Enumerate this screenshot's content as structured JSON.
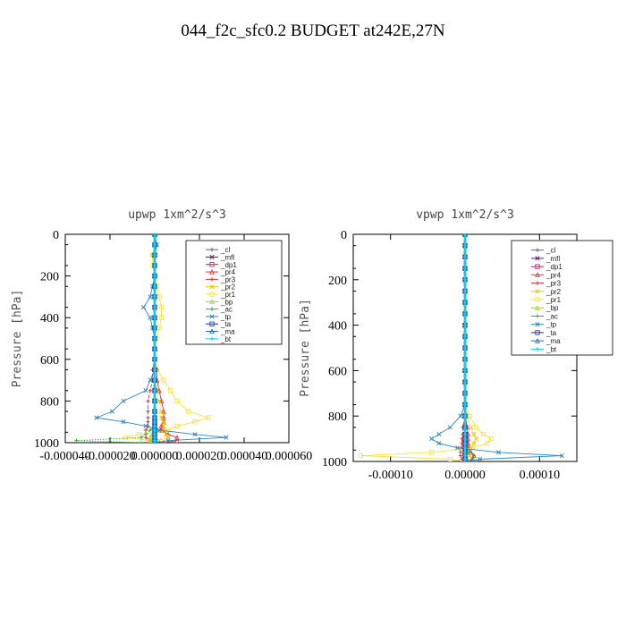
{
  "figure": {
    "title": "044_f2c_sfc0.2  BUDGET at242E,27N"
  },
  "chart_data": [
    {
      "type": "line",
      "title": "upwp   1xm^2/s^3",
      "ylabel": "Pressure [hPa]",
      "xlabel": "",
      "xlim": [
        -4e-05,
        6e-05
      ],
      "ylim": [
        1000,
        0
      ],
      "x_ticks": [
        -4e-05,
        -2e-05,
        0.0,
        2e-05,
        4e-05,
        6e-05
      ],
      "x_tick_labels": [
        "-0.000040",
        "-0.000020",
        "0.000000",
        "0.000020",
        "0.000040",
        "0.000060"
      ],
      "y_ticks": [
        0,
        200,
        400,
        600,
        800,
        1000
      ],
      "y_tick_labels": [
        "0",
        "200",
        "400",
        "600",
        "800",
        "1000"
      ],
      "legend_position": "top-right",
      "pressure_levels": [
        0,
        50,
        100,
        150,
        200,
        250,
        300,
        350,
        400,
        450,
        500,
        550,
        600,
        650,
        700,
        750,
        800,
        850,
        880,
        900,
        920,
        940,
        960,
        975,
        990,
        1000
      ],
      "series": [
        {
          "name": "_cl",
          "color": "#7a4fb0",
          "values": [
            0,
            0,
            0,
            0,
            0,
            0,
            0,
            0,
            0,
            0,
            0,
            0,
            0,
            0,
            0,
            0,
            0,
            0,
            0,
            0,
            0,
            0,
            0,
            0,
            0,
            0
          ]
        },
        {
          "name": "_mfl",
          "color": "#5b1a7a",
          "values": [
            0,
            0,
            0,
            0,
            0,
            0,
            0,
            0,
            0,
            0,
            0,
            0,
            0,
            0,
            0,
            0,
            0,
            0,
            0,
            0,
            0,
            0,
            0,
            0,
            0,
            0
          ]
        },
        {
          "name": "_dp1",
          "color": "#c0185a",
          "values": [
            0,
            0,
            0,
            0,
            0,
            0,
            0,
            0,
            0,
            0,
            0,
            0,
            0,
            0,
            0,
            0,
            0,
            0,
            0,
            0,
            0,
            0,
            0,
            0,
            0,
            0
          ]
        },
        {
          "name": "_pr4",
          "color": "#e03030",
          "values": [
            0,
            0,
            0,
            0,
            0,
            0,
            0,
            0,
            0,
            0,
            0,
            0,
            0,
            1e-06,
            1e-06,
            2e-06,
            3e-06,
            4e-06,
            4e-06,
            4e-06,
            3e-06,
            3e-06,
            6e-06,
            1e-05,
            1e-05,
            4e-06
          ]
        },
        {
          "name": "_pr3",
          "color": "#e03030",
          "values": [
            0,
            0,
            0,
            0,
            0,
            0,
            0,
            0,
            0,
            0,
            0,
            0,
            0,
            -1e-06,
            -1e-06,
            -2e-06,
            -3e-06,
            -3e-06,
            -3e-06,
            -3e-06,
            -3e-06,
            -4e-06,
            -4e-06,
            -4e-06,
            -2e-06,
            0
          ]
        },
        {
          "name": "_pr2",
          "color": "#e8c400",
          "values": [
            0,
            0,
            -1e-06,
            0,
            0,
            0,
            0,
            0,
            0,
            0,
            0,
            0,
            0,
            0,
            0,
            1e-06,
            2e-06,
            3e-06,
            3e-06,
            4e-06,
            4e-06,
            4e-06,
            5e-06,
            6e-06,
            2e-06,
            0
          ]
        },
        {
          "name": "_pr1",
          "color": "#f4e040",
          "values": [
            0,
            0,
            -1e-06,
            -1e-06,
            0,
            1e-06,
            2e-06,
            3e-06,
            3e-06,
            2e-06,
            1e-06,
            0,
            0,
            1e-06,
            4e-06,
            7e-06,
            1e-05,
            1.5e-05,
            2.4e-05,
            1.8e-05,
            1e-05,
            6e-06,
            -7e-06,
            -1.3e-05,
            -2e-06,
            0
          ]
        },
        {
          "name": "_bp",
          "color": "#9acd32",
          "values": [
            0,
            0,
            0,
            0,
            0,
            0,
            0,
            0,
            0,
            0,
            0,
            0,
            0,
            0,
            0,
            0,
            0,
            0,
            0,
            0,
            0,
            0,
            -1e-06,
            -2e-06,
            -2e-06,
            0
          ]
        },
        {
          "name": "_ac",
          "color": "#32b432",
          "values": [
            0,
            0,
            0,
            0,
            0,
            0,
            0,
            0,
            0,
            0,
            0,
            0,
            0,
            0,
            0,
            0,
            0,
            0,
            0,
            0,
            0,
            -2e-06,
            -4e-06,
            -6e-06,
            -3.5e-05,
            -6e-06
          ]
        },
        {
          "name": "_tp",
          "color": "#2a8ac0",
          "values": [
            0,
            1e-06,
            0,
            0,
            0,
            -1e-06,
            -2e-06,
            -5e-06,
            -2e-06,
            -1e-06,
            0,
            0,
            0,
            0,
            -2e-06,
            -4e-06,
            -1.4e-05,
            -1.9e-05,
            -2.6e-05,
            -1.4e-05,
            -4e-06,
            2e-06,
            1.8e-05,
            3.2e-05,
            6e-06,
            0
          ]
        },
        {
          "name": "_ta",
          "color": "#1a2aa0",
          "values": [
            0,
            0,
            0,
            0,
            0,
            0,
            0,
            0,
            0,
            0,
            0,
            0,
            0,
            0,
            0,
            0,
            0,
            0,
            0,
            0,
            0,
            0,
            0,
            0,
            0,
            0
          ]
        },
        {
          "name": "_ma",
          "color": "#1a60c0",
          "values": [
            0,
            0,
            0,
            0,
            0,
            0,
            0,
            0,
            0,
            0,
            0,
            0,
            0,
            0,
            0,
            0,
            0,
            0,
            0,
            0,
            0,
            0,
            0,
            0,
            0,
            0
          ]
        },
        {
          "name": "_bt",
          "color": "#00d0f0",
          "values": [
            0,
            0,
            0,
            0,
            0,
            0,
            0,
            0,
            0,
            0,
            0,
            0,
            0,
            0,
            0,
            0,
            0,
            0,
            0,
            0,
            0,
            0,
            0,
            0,
            0,
            0
          ]
        }
      ]
    },
    {
      "type": "line",
      "title": "vpwp   1xm^2/s^3",
      "ylabel": "Pressure [hPa]",
      "xlabel": "",
      "xlim": [
        -0.00015,
        0.00015
      ],
      "ylim": [
        1000,
        0
      ],
      "x_ticks": [
        -0.0001,
        0.0,
        0.0001
      ],
      "x_tick_labels": [
        "-0.00010",
        "0.00000",
        "0.00010"
      ],
      "y_ticks": [
        0,
        200,
        400,
        600,
        800,
        1000
      ],
      "y_tick_labels": [
        "0",
        "200",
        "400",
        "600",
        "800",
        "1000"
      ],
      "legend_position": "top-right",
      "pressure_levels": [
        0,
        50,
        100,
        150,
        200,
        250,
        300,
        350,
        400,
        450,
        500,
        550,
        600,
        650,
        700,
        750,
        800,
        850,
        880,
        900,
        920,
        940,
        960,
        975,
        990,
        1000
      ],
      "series": [
        {
          "name": "_cl",
          "color": "#7a4fb0",
          "values": [
            0,
            0,
            0,
            0,
            0,
            0,
            0,
            0,
            0,
            0,
            0,
            0,
            0,
            0,
            0,
            0,
            0,
            0,
            0,
            0,
            0,
            0,
            0,
            0,
            0,
            0
          ]
        },
        {
          "name": "_mfl",
          "color": "#5b1a7a",
          "values": [
            0,
            0,
            0,
            0,
            0,
            0,
            0,
            0,
            0,
            0,
            0,
            0,
            0,
            0,
            0,
            0,
            0,
            0,
            0,
            0,
            0,
            0,
            0,
            0,
            0,
            0
          ]
        },
        {
          "name": "_dp1",
          "color": "#c0185a",
          "values": [
            0,
            0,
            0,
            0,
            0,
            0,
            0,
            0,
            0,
            0,
            0,
            0,
            0,
            0,
            0,
            0,
            0,
            0,
            0,
            0,
            0,
            0,
            0,
            0,
            0,
            0
          ]
        },
        {
          "name": "_pr4",
          "color": "#e03030",
          "values": [
            0,
            0,
            0,
            0,
            0,
            0,
            0,
            0,
            0,
            0,
            0,
            0,
            0,
            0,
            0,
            0,
            0,
            3e-06,
            4e-06,
            4e-06,
            4e-06,
            5e-06,
            8e-06,
            1.2e-05,
            1e-05,
            4e-06
          ]
        },
        {
          "name": "_pr3",
          "color": "#e03030",
          "values": [
            0,
            0,
            0,
            0,
            0,
            0,
            0,
            0,
            0,
            0,
            0,
            0,
            0,
            0,
            0,
            0,
            0,
            -3e-06,
            -3e-06,
            -4e-06,
            -4e-06,
            -5e-06,
            -6e-06,
            -6e-06,
            -4e-06,
            0
          ]
        },
        {
          "name": "_pr2",
          "color": "#e8c400",
          "values": [
            0,
            0,
            0,
            0,
            0,
            0,
            0,
            0,
            0,
            0,
            0,
            0,
            0,
            0,
            0,
            0,
            3e-06,
            8e-06,
            1.2e-05,
            1.5e-05,
            1.2e-05,
            8e-06,
            4e-06,
            6e-06,
            2e-06,
            0
          ]
        },
        {
          "name": "_pr1",
          "color": "#f4e040",
          "values": [
            0,
            0,
            0,
            0,
            0,
            0,
            0,
            0,
            0,
            0,
            0,
            0,
            0,
            0,
            0,
            0,
            6e-06,
            1.5e-05,
            2.5e-05,
            3.5e-05,
            3e-05,
            1e-05,
            -4.5e-05,
            -0.00014,
            -2e-05,
            0
          ]
        },
        {
          "name": "_bp",
          "color": "#9acd32",
          "values": [
            0,
            0,
            0,
            0,
            0,
            0,
            0,
            0,
            0,
            0,
            0,
            0,
            0,
            0,
            0,
            0,
            0,
            0,
            0,
            0,
            0,
            0,
            0,
            0,
            0,
            0
          ]
        },
        {
          "name": "_ac",
          "color": "#32b432",
          "values": [
            0,
            0,
            0,
            0,
            0,
            0,
            0,
            0,
            0,
            0,
            0,
            0,
            0,
            0,
            0,
            0,
            0,
            0,
            0,
            0,
            0,
            0,
            5e-06,
            1.2e-05,
            9e-06,
            4e-06
          ]
        },
        {
          "name": "_tp",
          "color": "#2a8ac0",
          "values": [
            0,
            0,
            0,
            0,
            0,
            0,
            0,
            0,
            0,
            0,
            0,
            0,
            0,
            0,
            0,
            0,
            -6e-06,
            -2e-05,
            -3.5e-05,
            -4.5e-05,
            -3.5e-05,
            -1e-05,
            4.5e-05,
            0.00013,
            2e-05,
            0
          ]
        },
        {
          "name": "_ta",
          "color": "#1a2aa0",
          "values": [
            0,
            0,
            0,
            0,
            0,
            0,
            0,
            0,
            0,
            0,
            0,
            0,
            0,
            0,
            0,
            0,
            0,
            0,
            0,
            0,
            0,
            0,
            0,
            0,
            0,
            0
          ]
        },
        {
          "name": "_ma",
          "color": "#1a60c0",
          "values": [
            0,
            0,
            0,
            0,
            0,
            0,
            0,
            0,
            0,
            0,
            0,
            0,
            0,
            0,
            0,
            0,
            0,
            0,
            0,
            0,
            0,
            0,
            0,
            0,
            0,
            0
          ]
        },
        {
          "name": "_bt",
          "color": "#00d0f0",
          "values": [
            0,
            0,
            0,
            0,
            0,
            0,
            0,
            0,
            0,
            0,
            0,
            0,
            0,
            0,
            0,
            0,
            0,
            0,
            0,
            0,
            0,
            0,
            0,
            0,
            0,
            0
          ]
        }
      ]
    }
  ]
}
